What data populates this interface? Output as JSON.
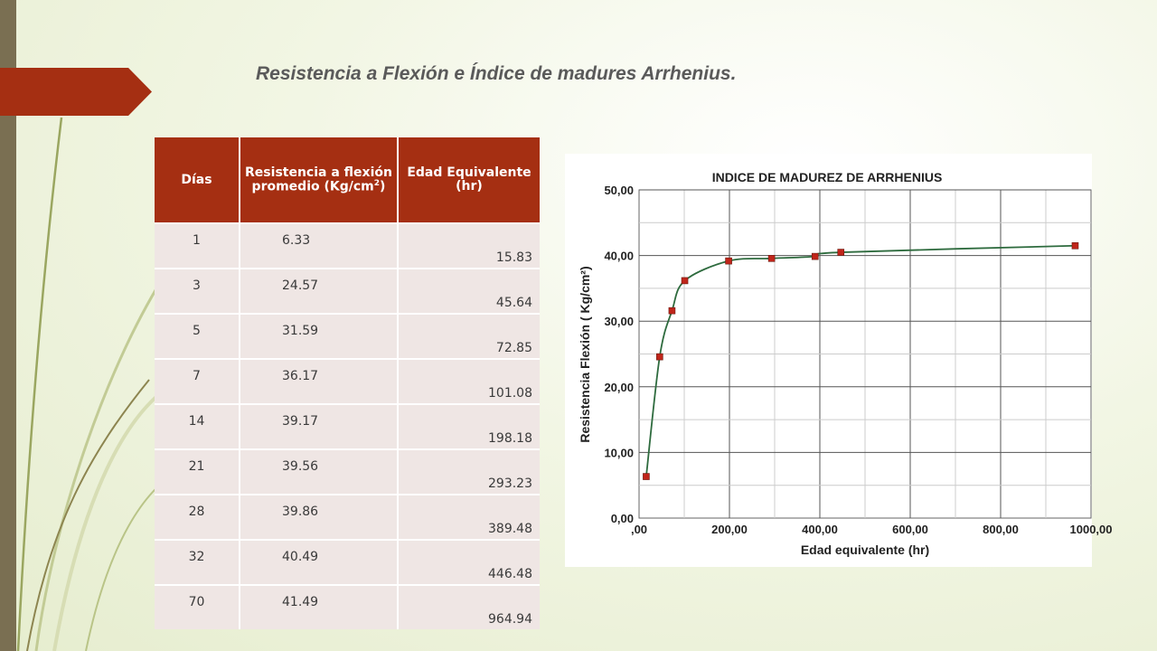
{
  "slide": {
    "title": "Resistencia a Flexión e Índice de madures Arrhenius.",
    "accent_color": "#a52f12",
    "sidebar_color": "#7a6f52"
  },
  "table": {
    "headers": [
      "Días",
      "Resistencia a flexión promedio (Kg/cm",
      "Edad Equivalente (hr)"
    ],
    "unit_superscript": "2",
    "header_close": ")",
    "rows": [
      [
        "1",
        "6.33",
        "15.83"
      ],
      [
        "3",
        "24.57",
        "45.64"
      ],
      [
        "5",
        "31.59",
        "72.85"
      ],
      [
        "7",
        "36.17",
        "101.08"
      ],
      [
        "14",
        "39.17",
        "198.18"
      ],
      [
        "21",
        "39.56",
        "293.23"
      ],
      [
        "28",
        "39.86",
        "389.48"
      ],
      [
        "32",
        "40.49",
        "446.48"
      ],
      [
        "70",
        "41.49",
        "964.94"
      ]
    ]
  },
  "chart_data": {
    "type": "line",
    "title": "INDICE DE MADUREZ DE ARRHENIUS",
    "xlabel": "Edad equivalente (hr)",
    "ylabel": "Resistencia Flexión ( Kg/cm²)",
    "xlim": [
      0,
      1000
    ],
    "ylim": [
      0,
      50
    ],
    "xticks": [
      ",00",
      "200,00",
      "400,00",
      "600,00",
      "800,00",
      "1000,00"
    ],
    "yticks": [
      "0,00",
      "10,00",
      "20,00",
      "30,00",
      "40,00",
      "50,00"
    ],
    "grid": true,
    "line_color": "#2e6b3e",
    "marker_color": "#c0251a",
    "series": [
      {
        "x": [
          15.83,
          45.64,
          72.85,
          101.08,
          198.18,
          293.23,
          389.48,
          446.48,
          964.94
        ],
        "y": [
          6.33,
          24.57,
          31.59,
          36.17,
          39.17,
          39.56,
          39.86,
          40.49,
          41.49
        ]
      }
    ]
  }
}
